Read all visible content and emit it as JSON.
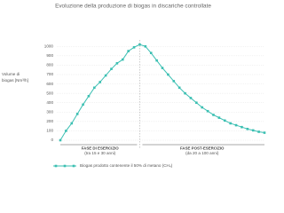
{
  "chart_data": {
    "type": "line",
    "title": "Evoluzione della produzione di biogas in discariche controllate",
    "y_label": [
      "Volume di",
      "biogas [Nm³/h]"
    ],
    "categories": [
      null,
      null,
      null,
      null,
      null,
      null,
      null,
      null,
      null,
      null,
      null,
      null,
      null,
      null,
      null,
      null,
      null,
      null,
      null,
      null,
      null,
      null,
      null,
      null,
      null,
      null,
      null,
      null,
      null,
      null,
      null,
      null,
      null,
      null,
      null,
      null,
      null
    ],
    "series": [
      {
        "name": "Biogas prodotto contenente il 50% di metano (CH₄)",
        "color": "#3bbfb2",
        "values": [
          0,
          100,
          180,
          280,
          380,
          470,
          560,
          620,
          690,
          760,
          820,
          860,
          950,
          990,
          1020,
          1000,
          930,
          850,
          770,
          700,
          630,
          560,
          500,
          450,
          400,
          350,
          310,
          270,
          240,
          210,
          180,
          160,
          140,
          120,
          105,
          90,
          80
        ]
      }
    ],
    "annotations": [
      {
        "text": "FASE DI ESERCIZIO",
        "subtext": "(tra 15 e 30 anni)"
      },
      {
        "text": "FASE POST-ESERCIZIO",
        "subtext": "(da 20 a 100 anni)"
      }
    ],
    "ylim": [
      0,
      1050
    ],
    "yticks": [
      0,
      100,
      200,
      300,
      400,
      500,
      600,
      700,
      800,
      900,
      1000
    ],
    "grid": true
  }
}
